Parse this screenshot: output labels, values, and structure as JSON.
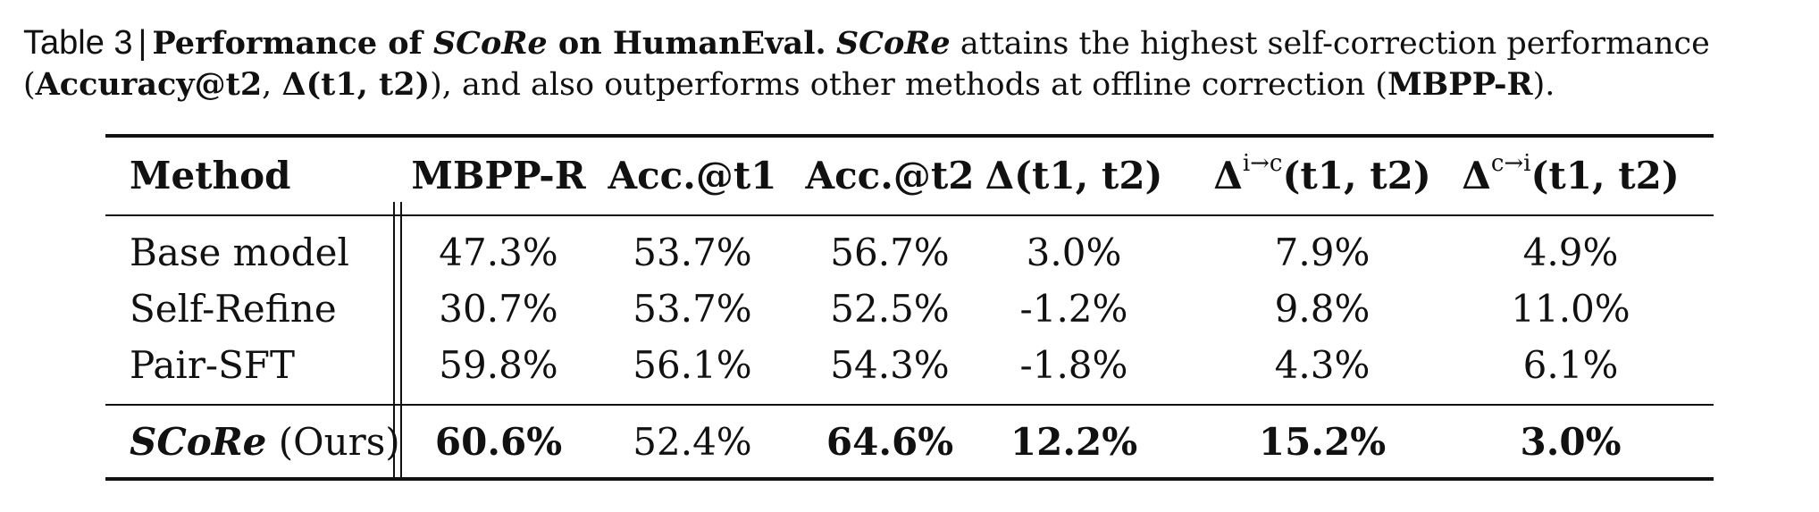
{
  "caption": {
    "label": "Table 3",
    "separator": "|",
    "title_prefix": "Performance of ",
    "title_method": "SCoRe",
    "title_suffix": " on HumanEval.",
    "text_method": "SCoRe",
    "text_1": " attains the highest self-correction performance (",
    "metric_1": "Accuracy@t2",
    "text_2": ", ",
    "metric_2": "Δ(t1, t2)",
    "text_3": "), and also outperforms other methods at offline correction (",
    "metric_3": "MBPP-R",
    "text_4": ")."
  },
  "table": {
    "headers": {
      "method": "Method",
      "mbppr": "MBPP-R",
      "acc_t1": "Acc.@t1",
      "acc_t2": "Acc.@t2",
      "delta": "Δ(t1, t2)",
      "delta_ic_base": "Δ",
      "delta_ic_sup": "i→c",
      "delta_ic_tail": "(t1, t2)",
      "delta_ci_base": "Δ",
      "delta_ci_sup": "c→i",
      "delta_ci_tail": "(t1, t2)"
    },
    "rows": [
      {
        "method": "Base model",
        "mbppr": "47.3%",
        "acc_t1": "53.7%",
        "acc_t2": "56.7%",
        "delta": "3.0%",
        "delta_ic": "7.9%",
        "delta_ci": "4.9%"
      },
      {
        "method": "Self-Refine",
        "mbppr": "30.7%",
        "acc_t1": "53.7%",
        "acc_t2": "52.5%",
        "delta": "-1.2%",
        "delta_ic": "9.8%",
        "delta_ci": "11.0%"
      },
      {
        "method": "Pair-SFT",
        "mbppr": "59.8%",
        "acc_t1": "56.1%",
        "acc_t2": "54.3%",
        "delta": "-1.8%",
        "delta_ic": "4.3%",
        "delta_ci": "6.1%"
      }
    ],
    "ours": {
      "method_name": "SCoRe",
      "method_suffix": " (Ours)",
      "mbppr": "60.6%",
      "acc_t1": "52.4%",
      "acc_t2": "64.6%",
      "delta": "12.2%",
      "delta_ic": "15.2%",
      "delta_ci": "3.0%"
    }
  }
}
